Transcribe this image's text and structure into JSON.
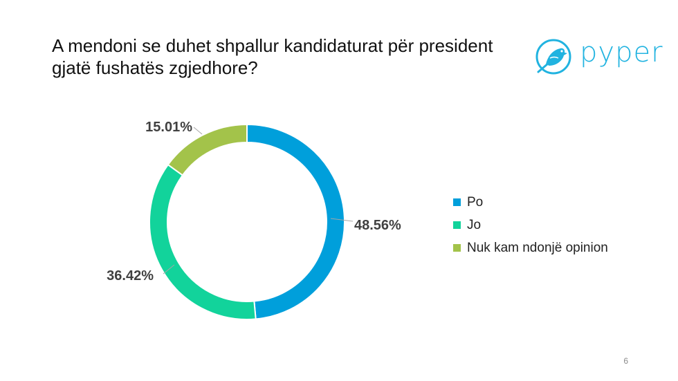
{
  "slide": {
    "title": "A mendoni se duhet shpallur kandidaturat për president gjatë fushatës zgjedhore?",
    "page_number": "6"
  },
  "logo": {
    "text": "pyper",
    "icon": "bird-icon",
    "color": "#21b3e0"
  },
  "chart_data": {
    "type": "pie",
    "donut": true,
    "categories": [
      "Po",
      "Jo",
      "Nuk kam ndonjë opinion"
    ],
    "values": [
      48.56,
      36.42,
      15.01
    ],
    "data_labels": [
      "48.56%",
      "36.42%",
      "15.01%"
    ],
    "colors": [
      "#009fdb",
      "#12d39b",
      "#a3c34a"
    ],
    "legend_position": "right",
    "start": "top",
    "direction": "clockwise"
  }
}
